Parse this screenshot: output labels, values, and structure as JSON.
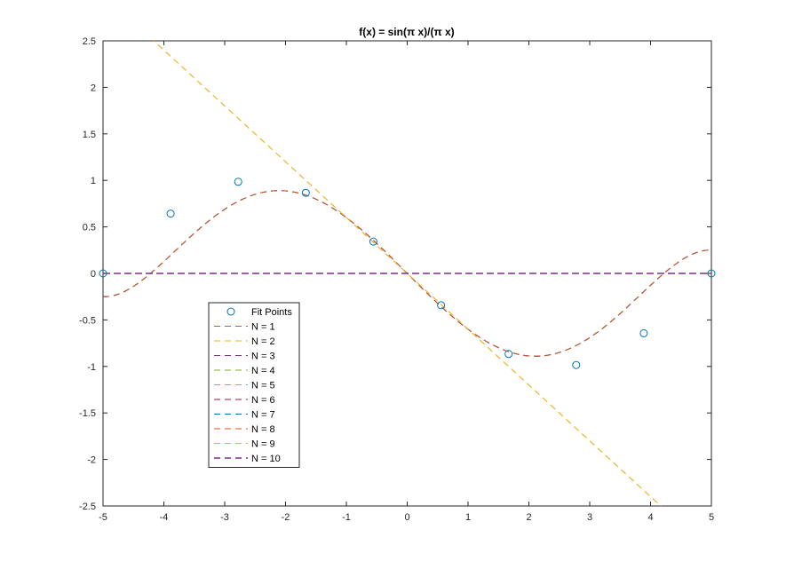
{
  "chart_data": {
    "type": "line",
    "title": "f(x) = sin(π x)/(π x)",
    "xlabel": "",
    "ylabel": "",
    "xlim": [
      -5,
      5
    ],
    "ylim": [
      -2.5,
      2.5
    ],
    "xticks": [
      -5,
      -4,
      -3,
      -2,
      -1,
      0,
      1,
      2,
      3,
      4,
      5
    ],
    "yticks": [
      -2.5,
      -2,
      -1.5,
      -1,
      -0.5,
      0,
      0.5,
      1,
      1.5,
      2,
      2.5
    ],
    "grid": false,
    "legend_location": "lower-left",
    "fit_points": {
      "name": "Fit Points",
      "color": "#0072BD",
      "x": [
        -5,
        -3.889,
        -2.778,
        -1.667,
        -0.556,
        0.556,
        1.667,
        2.778,
        3.889,
        5
      ],
      "y": [
        0,
        0.643,
        0.985,
        0.866,
        0.342,
        -0.342,
        -0.866,
        -0.985,
        -0.643,
        0
      ]
    },
    "series": [
      {
        "name": "N = 1",
        "color": "#D95319",
        "coef": [
          0
        ]
      },
      {
        "name": "N = 2",
        "color": "#EDB120",
        "coef": [
          0,
          -0.6
        ]
      },
      {
        "name": "N = 3",
        "color": "#7E2F8E",
        "coef": [
          0
        ]
      },
      {
        "name": "N = 4",
        "color": "#77AC30",
        "coef": [
          0
        ]
      },
      {
        "name": "N = 5",
        "color": "#4DBEEE",
        "coef": [
          0,
          -0.6575,
          0,
          0.0583,
          0,
          -0.0012
        ]
      },
      {
        "name": "N = 6",
        "color": "#A2142F",
        "coef": [
          0,
          -0.6575,
          0,
          0.0583,
          0,
          -0.0012
        ]
      },
      {
        "name": "N = 7",
        "color": "#0072BD",
        "coef": [
          0,
          -0.6575,
          0,
          0.0583,
          0,
          -0.0012
        ]
      },
      {
        "name": "N = 8",
        "color": "#D95319",
        "coef": [
          0,
          -0.6575,
          0,
          0.0583,
          0,
          -0.0012
        ]
      },
      {
        "name": "N = 9",
        "color": "#EDB120",
        "coef": [
          0,
          -0.6,
          0
        ]
      },
      {
        "name": "N = 10",
        "color": "#7E2F8E",
        "coef": [
          0
        ]
      }
    ]
  }
}
